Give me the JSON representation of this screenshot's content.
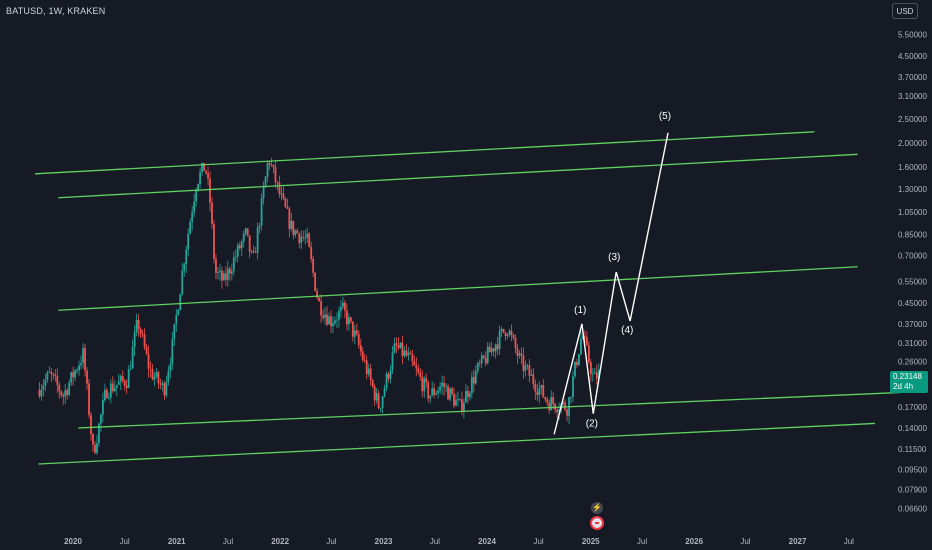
{
  "header": {
    "symbol_label": "BATUSD, 1W, KRAKEN"
  },
  "currency_button": "USD",
  "price_tag": {
    "price": "0.23148",
    "countdown": "2d 4h"
  },
  "icons": {
    "bolt": "lightning-icon",
    "flag": "flag-icon"
  },
  "colors": {
    "background": "#161a25",
    "up_candle": "#26a69a",
    "down_candle": "#ef5350",
    "channel_line": "#5fd35f",
    "projection_line": "#ffffff",
    "axis_text": "#b2b5be",
    "price_tag": "#089981"
  },
  "chart_data": {
    "type": "candlestick",
    "scale": "log",
    "y_ticks": [
      "5.50000",
      "4.50000",
      "3.70000",
      "3.10000",
      "2.50000",
      "2.00000",
      "1.60000",
      "1.30000",
      "1.05000",
      "0.85000",
      "0.70000",
      "0.55000",
      "0.45000",
      "0.37000",
      "0.31000",
      "0.26000",
      "0.17000",
      "0.14000",
      "0.11500",
      "0.09500",
      "0.07900",
      "0.06600"
    ],
    "x_ticks": [
      "2020",
      "Jul",
      "2021",
      "Jul",
      "2022",
      "Jul",
      "2023",
      "Jul",
      "2024",
      "Jul",
      "2025",
      "Jul",
      "2026",
      "Jul",
      "2027",
      "Jul"
    ],
    "price_path": [
      [
        "2019-09-01",
        0.2
      ],
      [
        "2019-10-15",
        0.23
      ],
      [
        "2019-12-01",
        0.19
      ],
      [
        "2020-02-10",
        0.28
      ],
      [
        "2020-03-16",
        0.11
      ],
      [
        "2020-05-01",
        0.2
      ],
      [
        "2020-07-15",
        0.22
      ],
      [
        "2020-08-20",
        0.38
      ],
      [
        "2020-10-01",
        0.24
      ],
      [
        "2020-11-20",
        0.2
      ],
      [
        "2020-12-20",
        0.3
      ],
      [
        "2021-02-01",
        0.7
      ],
      [
        "2021-03-15",
        1.4
      ],
      [
        "2021-04-15",
        1.62
      ],
      [
        "2021-05-01",
        1.2
      ],
      [
        "2021-05-20",
        0.6
      ],
      [
        "2021-06-20",
        0.55
      ],
      [
        "2021-08-01",
        0.7
      ],
      [
        "2021-09-05",
        0.85
      ],
      [
        "2021-10-01",
        0.65
      ],
      [
        "2021-11-25",
        1.75
      ],
      [
        "2022-01-01",
        1.25
      ],
      [
        "2022-02-15",
        0.9
      ],
      [
        "2022-04-10",
        0.8
      ],
      [
        "2022-05-20",
        0.45
      ],
      [
        "2022-07-01",
        0.38
      ],
      [
        "2022-08-15",
        0.42
      ],
      [
        "2022-10-01",
        0.32
      ],
      [
        "2022-12-20",
        0.17
      ],
      [
        "2023-02-15",
        0.3
      ],
      [
        "2023-04-01",
        0.27
      ],
      [
        "2023-06-15",
        0.19
      ],
      [
        "2023-08-01",
        0.21
      ],
      [
        "2023-10-01",
        0.17
      ],
      [
        "2023-12-01",
        0.24
      ],
      [
        "2024-03-15",
        0.36
      ],
      [
        "2024-05-01",
        0.26
      ],
      [
        "2024-08-05",
        0.18
      ],
      [
        "2024-10-15",
        0.17
      ],
      [
        "2024-12-05",
        0.34
      ],
      [
        "2025-01-15",
        0.22
      ],
      [
        "2025-02-01",
        0.23148
      ]
    ],
    "channel_lines": [
      {
        "from": [
          "2019-08-20",
          1.5
        ],
        "to": [
          "2027-03-01",
          2.22
        ]
      },
      {
        "from": [
          "2019-11-10",
          1.2
        ],
        "to": [
          "2027-08-01",
          1.8
        ]
      },
      {
        "from": [
          "2019-11-10",
          0.42
        ],
        "to": [
          "2027-08-01",
          0.63
        ]
      },
      {
        "from": [
          "2020-01-20",
          0.14
        ],
        "to": [
          "2028-01-01",
          0.195
        ]
      },
      {
        "from": [
          "2019-09-01",
          0.1
        ],
        "to": [
          "2027-10-01",
          0.146
        ]
      }
    ],
    "wave_path": [
      [
        "2024-08-25",
        0.132
      ],
      [
        "2024-12-01",
        0.37
      ],
      [
        "2025-01-10",
        0.16
      ],
      [
        "2025-04-01",
        0.6
      ],
      [
        "2025-05-20",
        0.38
      ],
      [
        "2025-10-01",
        2.2
      ]
    ],
    "wave_labels": [
      {
        "text": "(1)",
        "at": [
          "2024-11-25",
          0.41
        ]
      },
      {
        "text": "(2)",
        "at": [
          "2025-01-05",
          0.142
        ]
      },
      {
        "text": "(3)",
        "at": [
          "2025-03-25",
          0.67
        ]
      },
      {
        "text": "(4)",
        "at": [
          "2025-05-10",
          0.34
        ]
      },
      {
        "text": "(5)",
        "at": [
          "2025-09-20",
          2.5
        ]
      }
    ]
  }
}
